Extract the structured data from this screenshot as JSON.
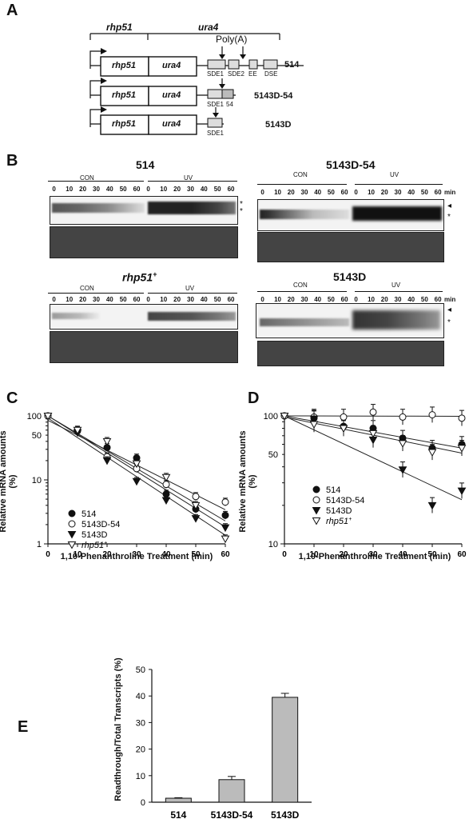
{
  "panelA": {
    "label": "A",
    "header_rhp51": "rhp51",
    "header_ura4": "ura4",
    "polyA": "Poly(A)",
    "constructs": [
      {
        "name": "514",
        "box1": "rhp51",
        "box2": "ura4",
        "elements": [
          "SDE1",
          "SDE2",
          "EE",
          "DSE"
        ]
      },
      {
        "name": "5143D-54",
        "box1": "rhp51",
        "box2": "ura4",
        "elements": [
          "SDE1",
          "54"
        ]
      },
      {
        "name": "5143D",
        "box1": "rhp51",
        "box2": "ura4",
        "elements": [
          "SDE1"
        ]
      }
    ]
  },
  "panelB": {
    "label": "B",
    "blots": [
      {
        "title": "514",
        "con": "CON",
        "uv": "UV",
        "times": [
          "0",
          "10",
          "20",
          "30",
          "40",
          "50",
          "60",
          "0",
          "10",
          "20",
          "30",
          "40",
          "50",
          "60"
        ],
        "unit": "",
        "markers": [
          "*",
          "*"
        ]
      },
      {
        "title": "5143D-54",
        "con": "CON",
        "uv": "UV",
        "times": [
          "0",
          "10",
          "20",
          "30",
          "40",
          "50",
          "60",
          "0",
          "10",
          "20",
          "30",
          "40",
          "50",
          "60"
        ],
        "unit": "min",
        "markers": [
          "◂",
          "*"
        ]
      },
      {
        "title": "rhp51",
        "title_sup": "+",
        "con": "CON",
        "uv": "UV",
        "times": [
          "0",
          "10",
          "20",
          "30",
          "40",
          "50",
          "60",
          "0",
          "10",
          "20",
          "30",
          "40",
          "50",
          "60"
        ],
        "unit": "",
        "markers": []
      },
      {
        "title": "5143D",
        "con": "CON",
        "uv": "UV",
        "times": [
          "0",
          "10",
          "20",
          "30",
          "40",
          "50",
          "60",
          "0",
          "10",
          "20",
          "30",
          "40",
          "50",
          "60"
        ],
        "unit": "min",
        "markers": [
          "◂",
          "*"
        ]
      }
    ]
  },
  "panelC": {
    "label": "C",
    "ylabel": "Relative mRNA amounts (%)",
    "xlabel": "1,10-Phenanthroline Treatment (min)",
    "xticks": [
      "0",
      "10",
      "20",
      "30",
      "40",
      "50",
      "60"
    ],
    "yticks": [
      "1",
      "10",
      "50",
      "100"
    ],
    "legend": [
      "514",
      "5143D-54",
      "5143D",
      "rhp51+"
    ]
  },
  "panelD": {
    "label": "D",
    "ylabel": "Relative mRNA amounts (%)",
    "xlabel": "1,10-Phenanthroline Treatment (min)",
    "xticks": [
      "0",
      "10",
      "20",
      "30",
      "40",
      "50",
      "60"
    ],
    "yticks": [
      "10",
      "50",
      "100"
    ],
    "legend": [
      "514",
      "5143D-54",
      "5143D",
      "rhp51+"
    ]
  },
  "panelE": {
    "label": "E",
    "ylabel": "Readthrough/Total Transcripts (%)"
  },
  "chart_data": [
    {
      "type": "scatter",
      "panel": "C",
      "xlabel": "1,10-Phenanthroline Treatment (min)",
      "ylabel": "Relative mRNA amounts (%)",
      "yscale": "log",
      "xlim": [
        0,
        60
      ],
      "ylim": [
        1,
        100
      ],
      "x": [
        0,
        10,
        20,
        30,
        40,
        50,
        60
      ],
      "series": [
        {
          "name": "514",
          "marker": "filled-circle",
          "values": [
            100,
            60,
            32,
            22,
            6,
            3.5,
            2.8
          ]
        },
        {
          "name": "5143D-54",
          "marker": "open-circle",
          "values": [
            100,
            58,
            23,
            15,
            8.5,
            5.5,
            4.5
          ]
        },
        {
          "name": "5143D",
          "marker": "filled-triangle-down",
          "values": [
            100,
            55,
            20,
            9.5,
            4.8,
            2.5,
            1.8
          ]
        },
        {
          "name": "rhp51+",
          "marker": "open-triangle-down",
          "values": [
            100,
            60,
            40,
            18,
            11,
            4,
            1.2
          ]
        }
      ]
    },
    {
      "type": "scatter",
      "panel": "D",
      "xlabel": "1,10-Phenanthroline Treatment (min)",
      "ylabel": "Relative mRNA amounts (%)",
      "yscale": "log",
      "xlim": [
        0,
        60
      ],
      "ylim": [
        10,
        100
      ],
      "x": [
        0,
        10,
        20,
        30,
        40,
        50,
        60
      ],
      "series": [
        {
          "name": "514",
          "marker": "filled-circle",
          "values": [
            100,
            96,
            83,
            80,
            67,
            56,
            60
          ]
        },
        {
          "name": "5143D-54",
          "marker": "open-circle",
          "values": [
            100,
            98,
            98,
            107,
            98,
            102,
            96
          ]
        },
        {
          "name": "5143D",
          "marker": "filled-triangle-down",
          "values": [
            100,
            95,
            80,
            65,
            38,
            20,
            26
          ]
        },
        {
          "name": "rhp51+",
          "marker": "open-triangle-down",
          "values": [
            100,
            86,
            80,
            73,
            61,
            52,
            56
          ]
        }
      ]
    },
    {
      "type": "bar",
      "panel": "E",
      "ylabel": "Readthrough/Total Transcripts (%)",
      "categories": [
        "514",
        "5143D-54",
        "5143D"
      ],
      "values": [
        1.5,
        8.5,
        39.5
      ],
      "errors": [
        0.2,
        1.2,
        1.5
      ],
      "ylim": [
        0,
        50
      ],
      "yticks": [
        "0",
        "10",
        "20",
        "30",
        "40",
        "50"
      ]
    }
  ]
}
